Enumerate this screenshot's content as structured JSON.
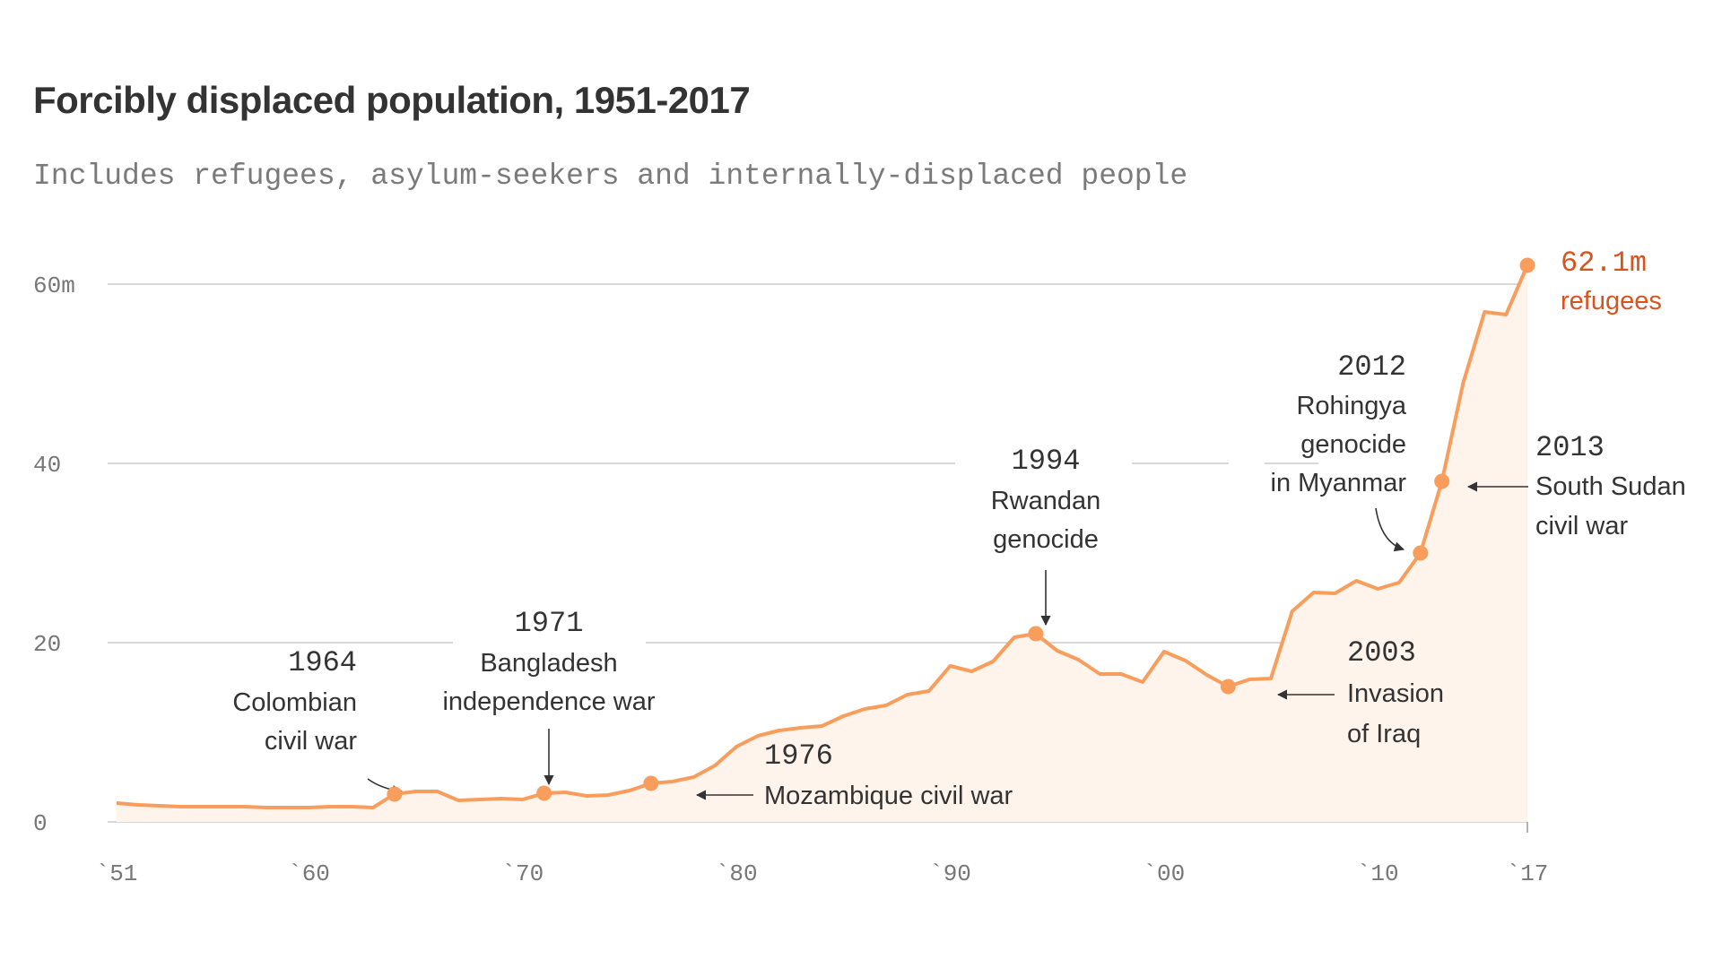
{
  "title": "Forcibly displaced population, 1951-2017",
  "subtitle": "Includes refugees, asylum-seekers and internally-displaced people",
  "colors": {
    "line": "#f99d5c",
    "area": "#fff4ec",
    "accent": "#d9531e",
    "grid": "#cccccc"
  },
  "chart_data": {
    "type": "area",
    "title": "Forcibly displaced population, 1951-2017",
    "subtitle": "Includes refugees, asylum-seekers and internally-displaced people",
    "ylim": [
      0,
      62.1
    ],
    "xlim": [
      1951,
      2017
    ],
    "y_ticks": [
      {
        "value": 0,
        "label": "0"
      },
      {
        "value": 20,
        "label": "20"
      },
      {
        "value": 40,
        "label": "40"
      },
      {
        "value": 60,
        "label": "60m"
      }
    ],
    "x_ticks": [
      {
        "value": 1951,
        "label": "`51"
      },
      {
        "value": 1960,
        "label": "`60"
      },
      {
        "value": 1970,
        "label": "`70"
      },
      {
        "value": 1980,
        "label": "`80"
      },
      {
        "value": 1990,
        "label": "`90"
      },
      {
        "value": 2000,
        "label": "`00"
      },
      {
        "value": 2010,
        "label": "`10"
      },
      {
        "value": 2017,
        "label": "`17"
      }
    ],
    "grid": "horizontal",
    "x": [
      1951,
      1952,
      1953,
      1954,
      1955,
      1956,
      1957,
      1958,
      1959,
      1960,
      1961,
      1962,
      1963,
      1964,
      1965,
      1966,
      1967,
      1968,
      1969,
      1970,
      1971,
      1972,
      1973,
      1974,
      1975,
      1976,
      1977,
      1978,
      1979,
      1980,
      1981,
      1982,
      1983,
      1984,
      1985,
      1986,
      1987,
      1988,
      1989,
      1990,
      1991,
      1992,
      1993,
      1994,
      1995,
      1996,
      1997,
      1998,
      1999,
      2000,
      2001,
      2002,
      2003,
      2004,
      2005,
      2006,
      2007,
      2008,
      2009,
      2010,
      2011,
      2012,
      2013,
      2014,
      2015,
      2016,
      2017
    ],
    "values": [
      2.1,
      1.9,
      1.8,
      1.7,
      1.7,
      1.7,
      1.7,
      1.6,
      1.6,
      1.6,
      1.7,
      1.7,
      1.6,
      3.1,
      3.4,
      3.4,
      2.4,
      2.5,
      2.6,
      2.5,
      3.2,
      3.3,
      2.9,
      3.0,
      3.5,
      4.3,
      4.5,
      5.0,
      6.3,
      8.4,
      9.6,
      10.2,
      10.5,
      10.7,
      11.8,
      12.6,
      13.0,
      14.2,
      14.6,
      17.4,
      16.8,
      17.9,
      20.6,
      21.0,
      19.1,
      18.1,
      16.5,
      16.5,
      15.6,
      19.0,
      18.0,
      16.4,
      15.1,
      15.9,
      16.0,
      23.5,
      25.6,
      25.5,
      26.9,
      26.0,
      26.7,
      30.0,
      38.0,
      49.0,
      56.9,
      56.6,
      62.1
    ],
    "highlighted_points": [
      1964,
      1971,
      1976,
      1994,
      2003,
      2012,
      2013,
      2017
    ],
    "annotations": [
      {
        "year": 1964,
        "label_year": "1964",
        "lines": [
          "Colombian",
          "civil war"
        ]
      },
      {
        "year": 1971,
        "label_year": "1971",
        "lines": [
          "Bangladesh",
          "independence war"
        ]
      },
      {
        "year": 1976,
        "label_year": "1976",
        "lines": [
          "Mozambique civil war"
        ]
      },
      {
        "year": 1994,
        "label_year": "1994",
        "lines": [
          "Rwandan",
          "genocide"
        ]
      },
      {
        "year": 2003,
        "label_year": "2003",
        "lines": [
          "Invasion",
          "of Iraq"
        ]
      },
      {
        "year": 2012,
        "label_year": "2012",
        "lines": [
          "Rohingya",
          "genocide",
          "in Myanmar"
        ]
      },
      {
        "year": 2013,
        "label_year": "2013",
        "lines": [
          "South Sudan",
          "civil war"
        ]
      }
    ],
    "final_label": {
      "value": "62.1m",
      "text": "refugees"
    }
  }
}
